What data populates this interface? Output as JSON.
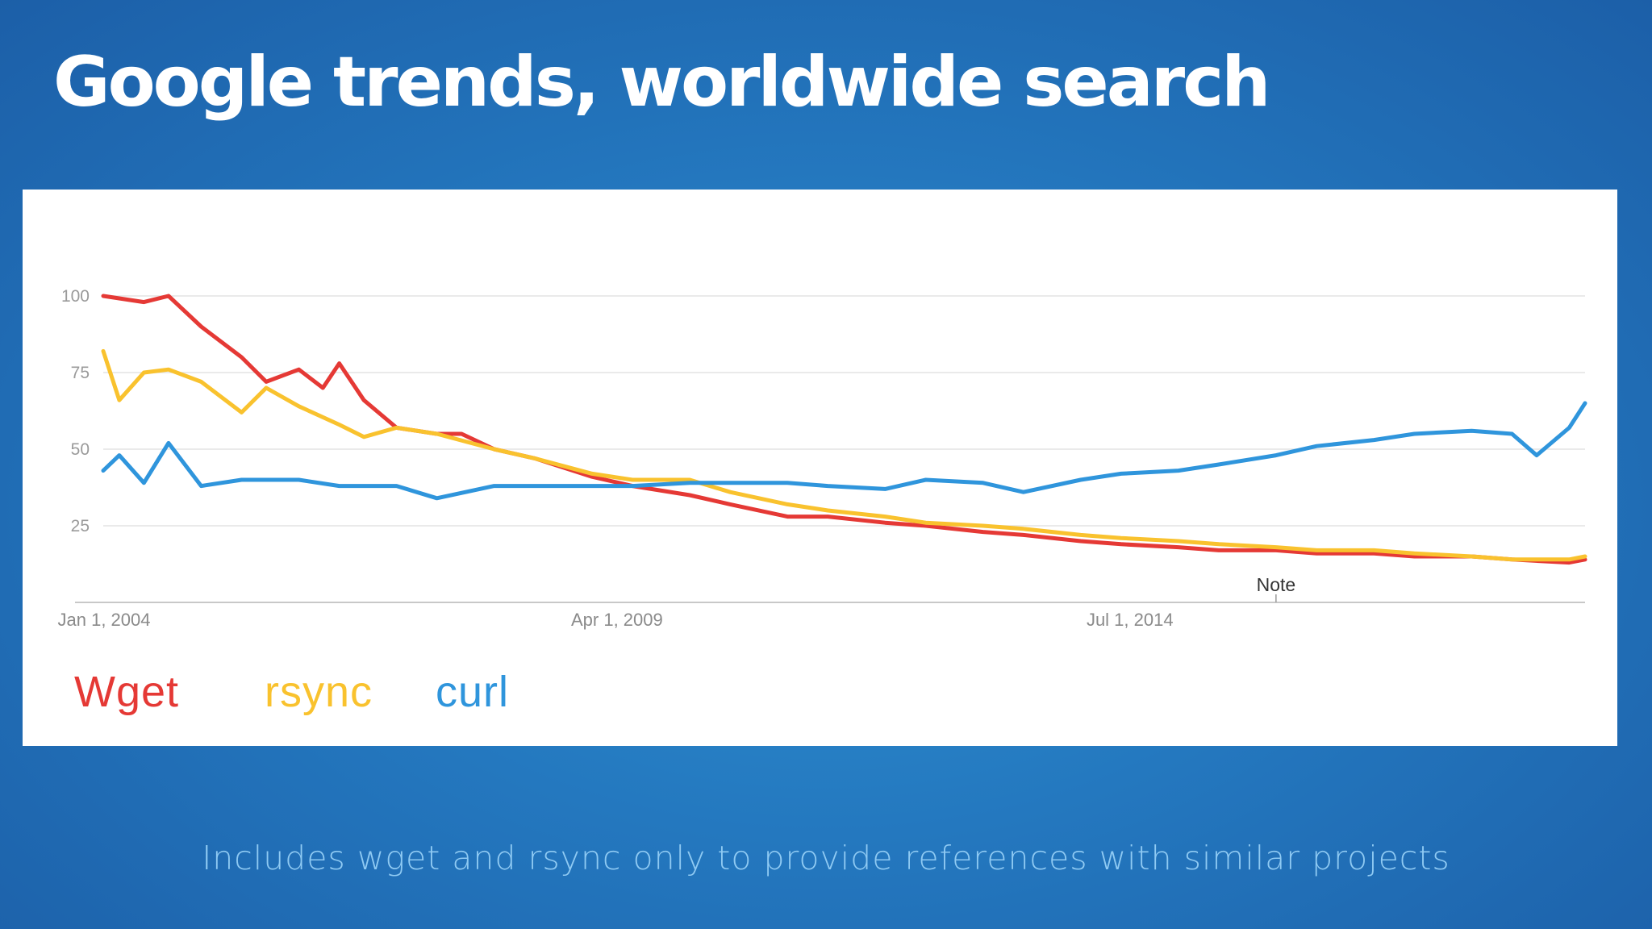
{
  "slide": {
    "title": "Google trends, worldwide search",
    "footnote": "Includes wget and rsync only to provide references with similar projects"
  },
  "chart_data": {
    "type": "line",
    "title": "",
    "xlabel": "",
    "ylabel": "",
    "ylim": [
      0,
      100
    ],
    "xlim": [
      "2004-01-01",
      "2019-03-01"
    ],
    "y_ticks": [
      "25",
      "50",
      "75",
      "100"
    ],
    "x_ticks": [
      {
        "date": "2004-01-01",
        "label": "Jan 1, 2004"
      },
      {
        "date": "2009-04-01",
        "label": "Apr 1, 2009"
      },
      {
        "date": "2014-07-01",
        "label": "Jul 1, 2014"
      }
    ],
    "grid": true,
    "legend_placement": "bottom-left",
    "annotations": [
      {
        "date": "2016-01-01",
        "label": "Note"
      }
    ],
    "series": [
      {
        "name": "Wget",
        "color": "#e53935",
        "points": [
          [
            "2004-01-01",
            100
          ],
          [
            "2004-06-01",
            98
          ],
          [
            "2004-09-01",
            100
          ],
          [
            "2005-01-01",
            90
          ],
          [
            "2005-06-01",
            80
          ],
          [
            "2005-09-01",
            72
          ],
          [
            "2006-01-01",
            76
          ],
          [
            "2006-04-01",
            70
          ],
          [
            "2006-06-01",
            78
          ],
          [
            "2006-09-01",
            66
          ],
          [
            "2007-01-01",
            57
          ],
          [
            "2007-06-01",
            55
          ],
          [
            "2007-09-01",
            55
          ],
          [
            "2008-01-01",
            50
          ],
          [
            "2008-06-01",
            47
          ],
          [
            "2009-01-01",
            41
          ],
          [
            "2009-06-01",
            38
          ],
          [
            "2010-01-01",
            35
          ],
          [
            "2010-06-01",
            32
          ],
          [
            "2011-01-01",
            28
          ],
          [
            "2011-06-01",
            28
          ],
          [
            "2012-01-01",
            26
          ],
          [
            "2012-06-01",
            25
          ],
          [
            "2013-01-01",
            23
          ],
          [
            "2013-06-01",
            22
          ],
          [
            "2014-01-01",
            20
          ],
          [
            "2014-06-01",
            19
          ],
          [
            "2015-01-01",
            18
          ],
          [
            "2015-06-01",
            17
          ],
          [
            "2016-01-01",
            17
          ],
          [
            "2016-06-01",
            16
          ],
          [
            "2017-01-01",
            16
          ],
          [
            "2017-06-01",
            15
          ],
          [
            "2018-01-01",
            15
          ],
          [
            "2018-06-01",
            14
          ],
          [
            "2019-01-01",
            13
          ],
          [
            "2019-03-01",
            14
          ]
        ]
      },
      {
        "name": "rsync",
        "color": "#f9c22e",
        "points": [
          [
            "2004-01-01",
            82
          ],
          [
            "2004-03-01",
            66
          ],
          [
            "2004-06-01",
            75
          ],
          [
            "2004-09-01",
            76
          ],
          [
            "2005-01-01",
            72
          ],
          [
            "2005-06-01",
            62
          ],
          [
            "2005-09-01",
            70
          ],
          [
            "2006-01-01",
            64
          ],
          [
            "2006-06-01",
            58
          ],
          [
            "2006-09-01",
            54
          ],
          [
            "2007-01-01",
            57
          ],
          [
            "2007-06-01",
            55
          ],
          [
            "2008-01-01",
            50
          ],
          [
            "2008-06-01",
            47
          ],
          [
            "2009-01-01",
            42
          ],
          [
            "2009-06-01",
            40
          ],
          [
            "2010-01-01",
            40
          ],
          [
            "2010-06-01",
            36
          ],
          [
            "2011-01-01",
            32
          ],
          [
            "2011-06-01",
            30
          ],
          [
            "2012-01-01",
            28
          ],
          [
            "2012-06-01",
            26
          ],
          [
            "2013-01-01",
            25
          ],
          [
            "2013-06-01",
            24
          ],
          [
            "2014-01-01",
            22
          ],
          [
            "2014-06-01",
            21
          ],
          [
            "2015-01-01",
            20
          ],
          [
            "2015-06-01",
            19
          ],
          [
            "2016-01-01",
            18
          ],
          [
            "2016-06-01",
            17
          ],
          [
            "2017-01-01",
            17
          ],
          [
            "2017-06-01",
            16
          ],
          [
            "2018-01-01",
            15
          ],
          [
            "2018-06-01",
            14
          ],
          [
            "2019-01-01",
            14
          ],
          [
            "2019-03-01",
            15
          ]
        ]
      },
      {
        "name": "curl",
        "color": "#2f95dc",
        "points": [
          [
            "2004-01-01",
            43
          ],
          [
            "2004-03-01",
            48
          ],
          [
            "2004-06-01",
            39
          ],
          [
            "2004-09-01",
            52
          ],
          [
            "2005-01-01",
            38
          ],
          [
            "2005-06-01",
            40
          ],
          [
            "2006-01-01",
            40
          ],
          [
            "2006-06-01",
            38
          ],
          [
            "2007-01-01",
            38
          ],
          [
            "2007-06-01",
            34
          ],
          [
            "2008-01-01",
            38
          ],
          [
            "2008-06-01",
            38
          ],
          [
            "2009-01-01",
            38
          ],
          [
            "2009-06-01",
            38
          ],
          [
            "2010-01-01",
            39
          ],
          [
            "2010-06-01",
            39
          ],
          [
            "2011-01-01",
            39
          ],
          [
            "2011-06-01",
            38
          ],
          [
            "2012-01-01",
            37
          ],
          [
            "2012-06-01",
            40
          ],
          [
            "2013-01-01",
            39
          ],
          [
            "2013-06-01",
            36
          ],
          [
            "2014-01-01",
            40
          ],
          [
            "2014-06-01",
            42
          ],
          [
            "2015-01-01",
            43
          ],
          [
            "2015-06-01",
            45
          ],
          [
            "2016-01-01",
            48
          ],
          [
            "2016-06-01",
            51
          ],
          [
            "2017-01-01",
            53
          ],
          [
            "2017-06-01",
            55
          ],
          [
            "2018-01-01",
            56
          ],
          [
            "2018-06-01",
            55
          ],
          [
            "2018-09-01",
            48
          ],
          [
            "2019-01-01",
            57
          ],
          [
            "2019-03-01",
            65
          ]
        ]
      }
    ]
  }
}
